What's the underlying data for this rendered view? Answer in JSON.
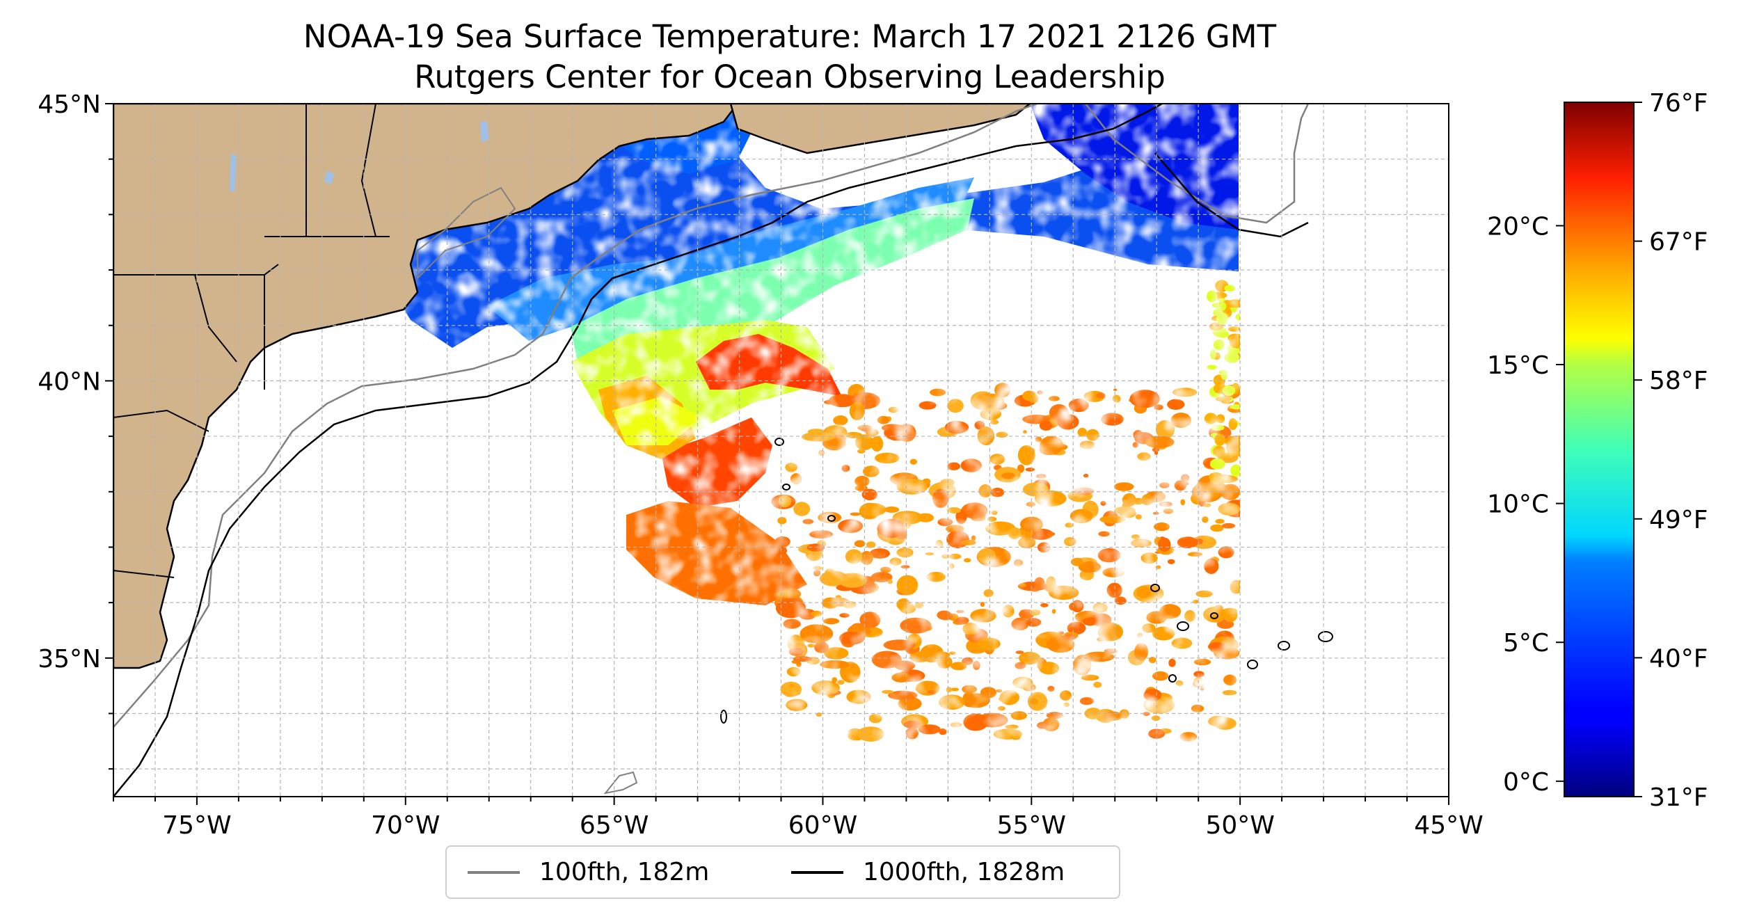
{
  "title": {
    "line1": "NOAA-19 Sea Surface Temperature: March 17 2021 2126 GMT",
    "line2": "Rutgers Center for Ocean Observing Leadership"
  },
  "map": {
    "lon_range": [
      -77,
      -45
    ],
    "lat_range": [
      32.5,
      45
    ],
    "data_east_limit_lon": -50,
    "land_color": "#d2b48c",
    "lake_color": "#9fc0e8",
    "grid_style": "dashed light gray, 1 degree spacing",
    "x_ticks": [
      "75°W",
      "70°W",
      "65°W",
      "60°W",
      "55°W",
      "50°W",
      "45°W"
    ],
    "x_tick_values": [
      -75,
      -70,
      -65,
      -60,
      -55,
      -50,
      -45
    ],
    "y_ticks": [
      "35°N",
      "40°N",
      "45°N"
    ],
    "y_tick_values": [
      35,
      40,
      45
    ]
  },
  "colorbar": {
    "colormap": "jet",
    "celsius_ticks": [
      "0°C",
      "5°C",
      "10°C",
      "15°C",
      "20°C"
    ],
    "celsius_values": [
      0,
      5,
      10,
      15,
      20
    ],
    "fahrenheit_ticks": [
      "31°F",
      "40°F",
      "49°F",
      "58°F",
      "67°F",
      "76°F"
    ],
    "fahrenheit_values": [
      31,
      40,
      49,
      58,
      67,
      76
    ],
    "range_f": [
      31,
      76
    ]
  },
  "legend": {
    "items": [
      {
        "label": "100fth, 182m",
        "color": "#808080"
      },
      {
        "label": "1000fth, 1828m",
        "color": "#000000"
      }
    ]
  }
}
